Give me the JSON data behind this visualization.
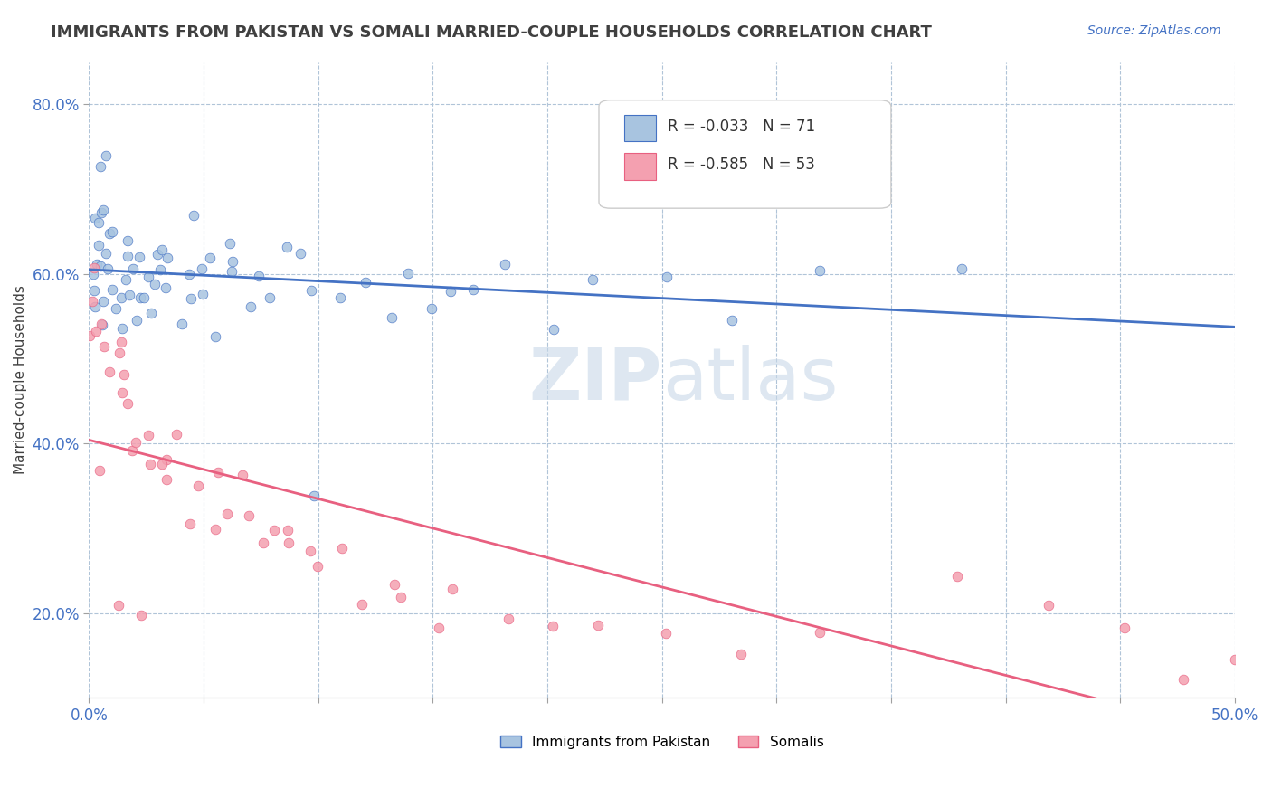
{
  "title": "IMMIGRANTS FROM PAKISTAN VS SOMALI MARRIED-COUPLE HOUSEHOLDS CORRELATION CHART",
  "source_text": "Source: ZipAtlas.com",
  "xlabel": "",
  "ylabel": "Married-couple Households",
  "xlim": [
    0.0,
    0.5
  ],
  "ylim": [
    0.1,
    0.85
  ],
  "xticks": [
    0.0,
    0.05,
    0.1,
    0.15,
    0.2,
    0.25,
    0.3,
    0.35,
    0.4,
    0.45,
    0.5
  ],
  "ytick_positions": [
    0.2,
    0.4,
    0.6,
    0.8
  ],
  "ytick_labels": [
    "20.0%",
    "40.0%",
    "60.0%",
    "80.0%"
  ],
  "series1_label": "Immigrants from Pakistan",
  "series1_R": -0.033,
  "series1_N": 71,
  "series1_color": "#a8c4e0",
  "series1_line_color": "#4472c4",
  "series2_label": "Somalis",
  "series2_R": -0.585,
  "series2_N": 53,
  "series2_color": "#f4a0b0",
  "series2_line_color": "#e86080",
  "watermark_zip": "ZIP",
  "watermark_atlas": "atlas",
  "watermark_color": "#c8d8e8",
  "background_color": "#ffffff",
  "grid_color": "#b0c4d8",
  "title_color": "#404040",
  "axis_label_color": "#4472c4",
  "seed": 42,
  "series1_x": [
    0.001,
    0.002,
    0.002,
    0.003,
    0.003,
    0.003,
    0.004,
    0.004,
    0.005,
    0.005,
    0.006,
    0.006,
    0.007,
    0.008,
    0.009,
    0.01,
    0.01,
    0.011,
    0.012,
    0.013,
    0.014,
    0.015,
    0.016,
    0.017,
    0.018,
    0.019,
    0.02,
    0.021,
    0.022,
    0.023,
    0.025,
    0.026,
    0.027,
    0.028,
    0.03,
    0.031,
    0.033,
    0.035,
    0.037,
    0.04,
    0.042,
    0.044,
    0.046,
    0.05,
    0.052,
    0.054,
    0.056,
    0.06,
    0.062,
    0.065,
    0.07,
    0.075,
    0.08,
    0.085,
    0.09,
    0.095,
    0.1,
    0.11,
    0.12,
    0.13,
    0.14,
    0.15,
    0.16,
    0.17,
    0.18,
    0.2,
    0.22,
    0.25,
    0.28,
    0.32,
    0.38
  ],
  "series1_y": [
    0.55,
    0.6,
    0.58,
    0.62,
    0.65,
    0.56,
    0.63,
    0.67,
    0.7,
    0.68,
    0.72,
    0.58,
    0.75,
    0.65,
    0.55,
    0.63,
    0.6,
    0.57,
    0.64,
    0.58,
    0.62,
    0.55,
    0.6,
    0.58,
    0.65,
    0.6,
    0.57,
    0.62,
    0.55,
    0.6,
    0.58,
    0.63,
    0.57,
    0.6,
    0.62,
    0.55,
    0.58,
    0.6,
    0.62,
    0.58,
    0.6,
    0.57,
    0.62,
    0.58,
    0.6,
    0.62,
    0.55,
    0.58,
    0.6,
    0.62,
    0.58,
    0.57,
    0.6,
    0.62,
    0.58,
    0.6,
    0.35,
    0.57,
    0.6,
    0.58,
    0.6,
    0.58,
    0.57,
    0.6,
    0.58,
    0.55,
    0.6,
    0.58,
    0.57,
    0.6,
    0.58
  ],
  "series2_x": [
    0.001,
    0.002,
    0.003,
    0.004,
    0.005,
    0.006,
    0.008,
    0.01,
    0.012,
    0.014,
    0.016,
    0.018,
    0.02,
    0.022,
    0.025,
    0.027,
    0.03,
    0.033,
    0.036,
    0.04,
    0.044,
    0.048,
    0.052,
    0.056,
    0.06,
    0.065,
    0.07,
    0.075,
    0.08,
    0.085,
    0.09,
    0.095,
    0.1,
    0.11,
    0.12,
    0.13,
    0.14,
    0.15,
    0.16,
    0.18,
    0.2,
    0.22,
    0.25,
    0.28,
    0.32,
    0.38,
    0.42,
    0.45,
    0.48,
    0.5,
    0.005,
    0.015,
    0.025
  ],
  "series2_y": [
    0.58,
    0.55,
    0.6,
    0.52,
    0.5,
    0.55,
    0.48,
    0.52,
    0.45,
    0.5,
    0.48,
    0.42,
    0.45,
    0.4,
    0.42,
    0.38,
    0.4,
    0.38,
    0.35,
    0.38,
    0.32,
    0.35,
    0.38,
    0.3,
    0.32,
    0.35,
    0.3,
    0.28,
    0.3,
    0.28,
    0.28,
    0.25,
    0.28,
    0.25,
    0.22,
    0.25,
    0.22,
    0.2,
    0.22,
    0.2,
    0.18,
    0.2,
    0.18,
    0.15,
    0.18,
    0.22,
    0.2,
    0.18,
    0.15,
    0.14,
    0.35,
    0.22,
    0.2
  ]
}
